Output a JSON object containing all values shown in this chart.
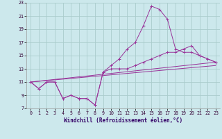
{
  "xlabel": "Windchill (Refroidissement éolien,°C)",
  "bg_color": "#cce8ec",
  "grid_color": "#aacccc",
  "line_color": "#993399",
  "xlim": [
    -0.5,
    23.5
  ],
  "ylim": [
    7,
    23
  ],
  "xticks": [
    0,
    1,
    2,
    3,
    4,
    5,
    6,
    7,
    8,
    9,
    10,
    11,
    12,
    13,
    14,
    15,
    16,
    17,
    18,
    19,
    20,
    21,
    22,
    23
  ],
  "yticks": [
    7,
    9,
    11,
    13,
    15,
    17,
    19,
    21,
    23
  ],
  "line1_x": [
    0,
    1,
    2,
    3,
    4,
    5,
    6,
    7,
    8,
    9,
    10,
    11,
    12,
    13,
    14,
    15,
    16,
    17,
    18,
    19,
    20,
    21,
    22,
    23
  ],
  "line1_y": [
    11,
    10,
    11,
    11,
    8.5,
    9,
    8.5,
    8.5,
    7.5,
    12.5,
    13,
    13,
    13,
    13.5,
    14,
    14.5,
    15,
    15.5,
    15.5,
    16,
    16.5,
    15,
    14.5,
    14
  ],
  "line2_x": [
    0,
    1,
    2,
    3,
    4,
    5,
    6,
    7,
    8,
    9,
    10,
    11,
    12,
    13,
    14,
    15,
    16,
    17,
    18,
    19,
    20,
    21,
    22,
    23
  ],
  "line2_y": [
    11,
    10,
    11,
    11,
    8.5,
    9,
    8.5,
    8.5,
    7.5,
    12.5,
    13.5,
    14.5,
    16,
    17,
    19.5,
    22.5,
    22,
    20.5,
    16,
    15.5,
    15.5,
    15,
    14.5,
    14
  ],
  "line3_x": [
    0,
    23
  ],
  "line3_y": [
    11,
    14
  ],
  "line4_x": [
    0,
    23
  ],
  "line4_y": [
    11,
    13.5
  ],
  "xlabel_fontsize": 5.5,
  "tick_fontsize": 4.8
}
